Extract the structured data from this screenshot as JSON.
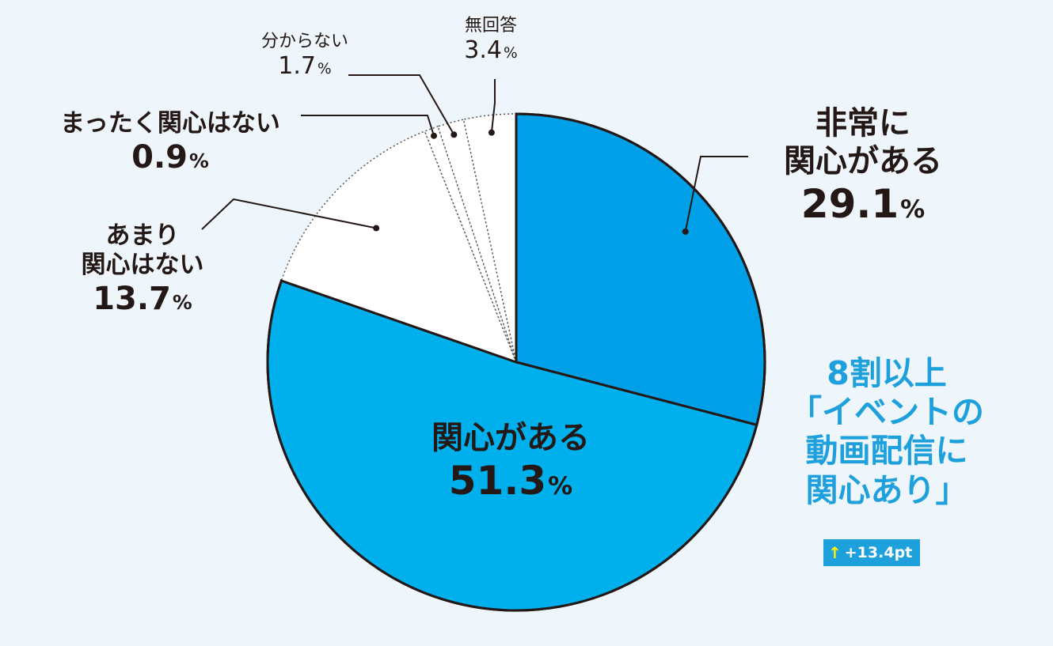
{
  "chart_data": {
    "type": "pie",
    "start_angle_deg": 0,
    "direction": "clockwise",
    "slices": [
      {
        "label": "非常に\n関心がある",
        "value": 29.1,
        "color": "#00a0e9"
      },
      {
        "label": "関心がある",
        "value": 51.3,
        "color": "#00b0ec"
      },
      {
        "label": "あまり\n関心はない",
        "value": 13.7,
        "color": "#ffffff"
      },
      {
        "label": "まったく関心はない",
        "value": 0.9,
        "color": "#ffffff"
      },
      {
        "label": "分からない",
        "value": 1.7,
        "color": "#ffffff"
      },
      {
        "label": "無回答",
        "value": 3.4,
        "color": "#ffffff"
      }
    ],
    "pct_suffix": "%",
    "annotation": {
      "text": "8割以上\n「イベントの\n動画配信に\n関心あり」",
      "badge_arrow": "↑",
      "badge_text": "+13.4pt"
    }
  }
}
